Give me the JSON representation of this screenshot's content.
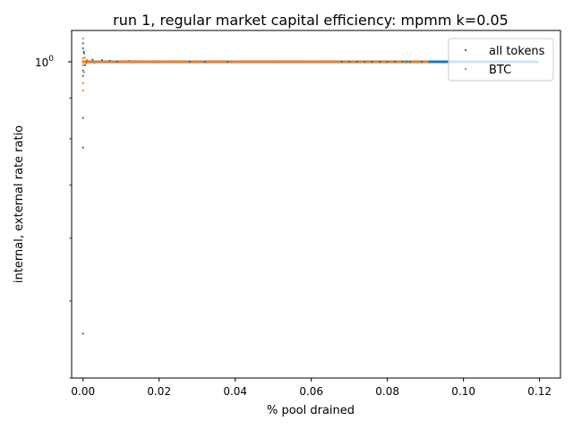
{
  "chart_data": {
    "type": "scatter",
    "title": "run 1, regular market capital efficiency: mpmm k=0.05",
    "xlabel": "% pool drained",
    "ylabel": "internal, external rate ratio",
    "xlim": [
      -0.003,
      0.1255
    ],
    "ylim": [
      0.4,
      1.095
    ],
    "y_scale": "log",
    "x_ticks": [
      0.0,
      0.02,
      0.04,
      0.06,
      0.08,
      0.1,
      0.12
    ],
    "x_tick_labels": [
      "0.00",
      "0.02",
      "0.04",
      "0.06",
      "0.08",
      "0.10",
      "0.12"
    ],
    "y_ticks": [
      1.0
    ],
    "y_tick_labels": [
      "10^0"
    ],
    "legend": {
      "position": "top-right",
      "entries": [
        "all tokens",
        "BTC"
      ]
    },
    "series": [
      {
        "name": "all tokens",
        "color": "#1f77b4",
        "points": [
          [
            0.0,
            0.85
          ],
          [
            0.0,
            0.78
          ],
          [
            0.0,
            0.455
          ],
          [
            0.0,
            0.96
          ],
          [
            0.0,
            0.975
          ],
          [
            0.0,
            1.04
          ],
          [
            0.0,
            1.055
          ],
          [
            0.0002,
            1.03
          ],
          [
            0.0003,
            1.025
          ],
          [
            0.0005,
            0.99
          ],
          [
            0.001,
            1.002
          ],
          [
            0.002,
            1.0
          ],
          [
            0.0025,
            1.006
          ],
          [
            0.003,
            0.998
          ],
          [
            0.004,
            1.0
          ],
          [
            0.005,
            1.005
          ],
          [
            0.006,
            1.0
          ],
          [
            0.007,
            1.003
          ],
          [
            0.008,
            1.0
          ],
          [
            0.009,
            1.0
          ],
          [
            0.012,
            1.002
          ],
          [
            0.015,
            1.0
          ],
          [
            0.018,
            1.0
          ],
          [
            0.02,
            1.001
          ],
          [
            0.022,
            1.0
          ],
          [
            0.025,
            1.0
          ],
          [
            0.028,
            1.0
          ],
          [
            0.03,
            1.0
          ],
          [
            0.032,
            1.0
          ],
          [
            0.035,
            1.0
          ],
          [
            0.038,
            1.0
          ],
          [
            0.04,
            1.0
          ],
          [
            0.045,
            1.0
          ],
          [
            0.05,
            1.0
          ],
          [
            0.055,
            1.0
          ],
          [
            0.06,
            1.0
          ],
          [
            0.065,
            1.0
          ],
          [
            0.068,
            1.0
          ],
          [
            0.07,
            1.0
          ],
          [
            0.072,
            1.0
          ],
          [
            0.074,
            1.0
          ],
          [
            0.076,
            1.0
          ],
          [
            0.078,
            1.0
          ],
          [
            0.08,
            1.0
          ],
          [
            0.082,
            1.0
          ],
          [
            0.084,
            1.0
          ],
          [
            0.085,
            1.0
          ],
          [
            0.086,
            1.0
          ],
          [
            0.089,
            1.0
          ],
          [
            0.0945,
            1.0
          ],
          [
            0.0955,
            1.0
          ],
          [
            0.097,
            1.0
          ],
          [
            0.099,
            1.0
          ],
          [
            0.1195,
            1.0
          ]
        ]
      },
      {
        "name": "BTC",
        "color": "#ff7f0e",
        "points": [
          [
            0.0,
            1.07
          ],
          [
            0.0,
            0.92
          ],
          [
            0.0,
            0.94
          ],
          [
            0.0,
            1.01
          ],
          [
            0.0,
            0.99
          ],
          [
            0.0003,
            0.97
          ],
          [
            0.0005,
            1.012
          ],
          [
            0.0008,
            0.995
          ],
          [
            0.001,
            1.005
          ],
          [
            0.0015,
            1.002
          ],
          [
            0.002,
            1.0
          ],
          [
            0.003,
            1.0
          ],
          [
            0.004,
            1.0
          ],
          [
            0.006,
            1.001
          ],
          [
            0.008,
            1.0
          ],
          [
            0.01,
            1.0
          ],
          [
            0.012,
            1.0
          ],
          [
            0.015,
            1.0
          ],
          [
            0.018,
            1.0
          ],
          [
            0.02,
            1.0
          ],
          [
            0.022,
            1.0
          ],
          [
            0.025,
            1.0
          ],
          [
            0.03,
            1.0
          ],
          [
            0.035,
            1.0
          ],
          [
            0.04,
            1.0
          ],
          [
            0.045,
            1.0
          ],
          [
            0.05,
            1.0
          ],
          [
            0.055,
            1.0
          ],
          [
            0.06,
            1.0
          ],
          [
            0.065,
            1.0
          ],
          [
            0.069,
            1.0
          ],
          [
            0.075,
            1.0
          ],
          [
            0.0905,
            1.0
          ]
        ]
      }
    ]
  }
}
